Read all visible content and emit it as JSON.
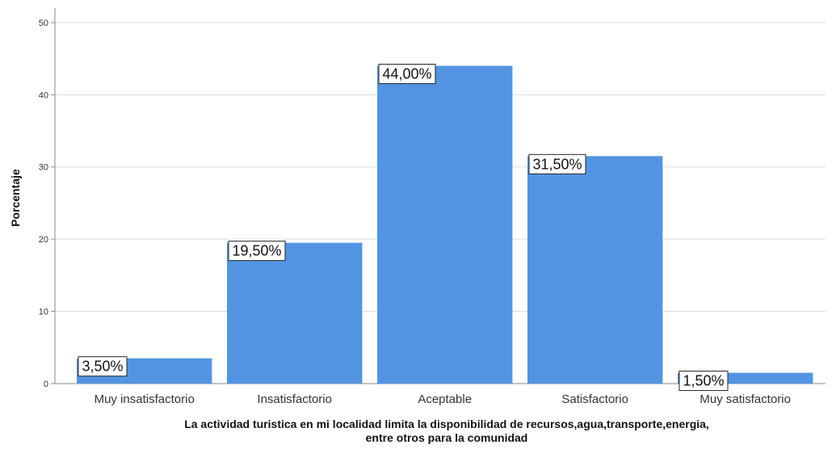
{
  "chart_data": {
    "type": "bar",
    "categories": [
      "Muy insatisfactorio",
      "Insatisfactorio",
      "Aceptable",
      "Satisfactorio",
      "Muy satisfactorio"
    ],
    "values": [
      3.5,
      19.5,
      44.0,
      31.5,
      1.5
    ],
    "data_labels": [
      "3,50%",
      "19,50%",
      "44,00%",
      "31,50%",
      "1,50%"
    ],
    "yticks": [
      "0",
      "10",
      "20",
      "30",
      "40",
      "50"
    ],
    "ylim": [
      0,
      50
    ],
    "ylabel": "Porcentaje",
    "xlabel_lines": [
      "La actividad turistica en mi localidad limita la disponibilidad de recursos,agua,transporte,energia,",
      "entre otros para la comunidad"
    ],
    "grid": true,
    "bar_color": "#5294e2"
  }
}
